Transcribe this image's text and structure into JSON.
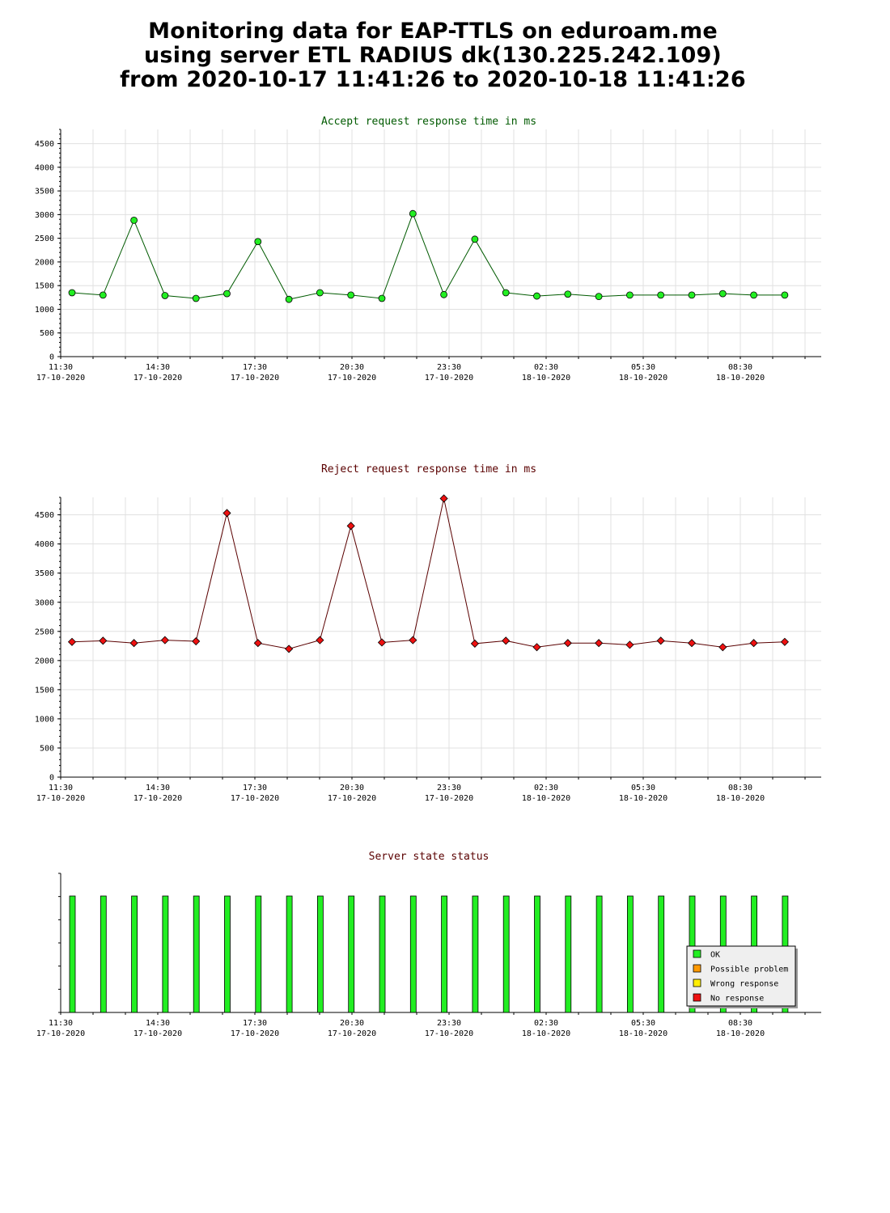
{
  "page": {
    "title_lines": [
      "Monitoring data for EAP-TTLS on eduroam.me",
      "using server ETL RADIUS dk(130.225.242.109)",
      "from 2020-10-17 11:41:26 to 2020-10-18 11:41:26"
    ]
  },
  "x_ticks": [
    {
      "time": "11:30",
      "date": "17-10-2020"
    },
    {
      "time": "14:30",
      "date": "17-10-2020"
    },
    {
      "time": "17:30",
      "date": "17-10-2020"
    },
    {
      "time": "20:30",
      "date": "17-10-2020"
    },
    {
      "time": "23:30",
      "date": "17-10-2020"
    },
    {
      "time": "02:30",
      "date": "18-10-2020"
    },
    {
      "time": "05:30",
      "date": "18-10-2020"
    },
    {
      "time": "08:30",
      "date": "18-10-2020"
    }
  ],
  "chart_data": [
    {
      "type": "line",
      "title": "Accept request response time in ms",
      "title_color": "#005a00",
      "line_color": "#005a00",
      "marker_color": "#22ee22",
      "marker": "circle",
      "ylim": [
        0,
        4800
      ],
      "yticks": [
        0,
        500,
        1000,
        1500,
        2000,
        2500,
        3000,
        3500,
        4000,
        4500
      ],
      "grid": true,
      "x": [
        "11:41",
        "12:41",
        "13:41",
        "14:41",
        "15:41",
        "16:41",
        "17:41",
        "18:41",
        "19:41",
        "20:41",
        "21:41",
        "22:41",
        "23:41",
        "00:41",
        "01:41",
        "02:41",
        "03:41",
        "04:41",
        "05:41",
        "06:41",
        "07:41",
        "08:41",
        "09:41",
        "10:41"
      ],
      "values": [
        1350,
        1300,
        2880,
        1290,
        1230,
        1330,
        2430,
        1210,
        1350,
        1300,
        1230,
        3020,
        1310,
        2480,
        1350,
        1280,
        1320,
        1270,
        1300,
        1300,
        1300,
        1330,
        1300,
        1300
      ]
    },
    {
      "type": "line",
      "title": "Reject request response time in ms",
      "title_color": "#5a0000",
      "line_color": "#5a0000",
      "marker_color": "#ee1111",
      "marker": "diamond",
      "ylim": [
        0,
        4800
      ],
      "yticks": [
        0,
        500,
        1000,
        1500,
        2000,
        2500,
        3000,
        3500,
        4000,
        4500
      ],
      "grid": true,
      "x": [
        "11:41",
        "12:41",
        "13:41",
        "14:41",
        "15:41",
        "16:41",
        "17:41",
        "18:41",
        "19:41",
        "20:41",
        "21:41",
        "22:41",
        "23:41",
        "00:41",
        "01:41",
        "02:41",
        "03:41",
        "04:41",
        "05:41",
        "06:41",
        "07:41",
        "08:41",
        "09:41",
        "10:41"
      ],
      "values": [
        2320,
        2340,
        2300,
        2350,
        2330,
        4530,
        2300,
        2200,
        2350,
        4310,
        2310,
        2350,
        4780,
        2290,
        2340,
        2230,
        2300,
        2300,
        2270,
        2340,
        2300,
        2230,
        2300,
        2320
      ]
    },
    {
      "type": "bar",
      "title": "Server state status",
      "title_color": "#5a0000",
      "grid": false,
      "legend_position": "bottom-right",
      "legend": [
        {
          "label": "OK",
          "color": "#22ee22"
        },
        {
          "label": "Possible problem",
          "color": "#ff9900"
        },
        {
          "label": "Wrong response",
          "color": "#ffee00"
        },
        {
          "label": "No response",
          "color": "#ee1111"
        }
      ],
      "x": [
        "11:41",
        "12:41",
        "13:41",
        "14:41",
        "15:41",
        "16:41",
        "17:41",
        "18:41",
        "19:41",
        "20:41",
        "21:41",
        "22:41",
        "23:41",
        "00:41",
        "01:41",
        "02:41",
        "03:41",
        "04:41",
        "05:41",
        "06:41",
        "07:41",
        "08:41",
        "09:41",
        "10:41"
      ],
      "states": [
        "OK",
        "OK",
        "OK",
        "OK",
        "OK",
        "OK",
        "OK",
        "OK",
        "OK",
        "OK",
        "OK",
        "OK",
        "OK",
        "OK",
        "OK",
        "OK",
        "OK",
        "OK",
        "OK",
        "OK",
        "OK",
        "OK",
        "OK",
        "OK"
      ],
      "values": [
        1,
        1,
        1,
        1,
        1,
        1,
        1,
        1,
        1,
        1,
        1,
        1,
        1,
        1,
        1,
        1,
        1,
        1,
        1,
        1,
        1,
        1,
        1,
        1
      ]
    }
  ]
}
